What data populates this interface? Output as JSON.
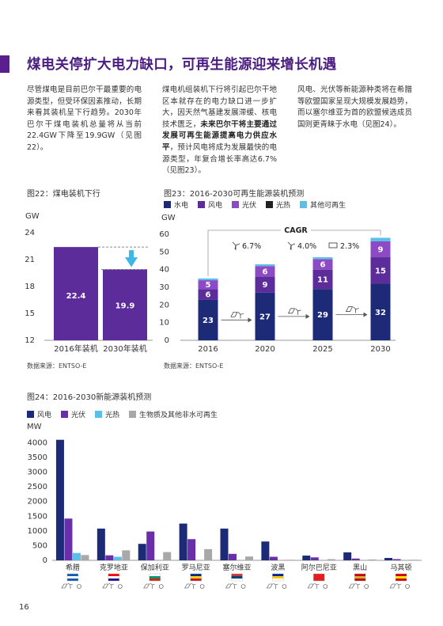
{
  "title": "煤电关停扩大电力缺口，可再生能源迎来增长机遇",
  "paragraphs": {
    "p1": "尽管煤电是目前巴尔干最重要的电源类型，但受环保因素推动，长期来看其装机呈下行趋势。2030年巴尔干煤电装机总量将从当前22.4GW下降至19.9GW（见图22）。",
    "p2_a": "煤电机组装机下行将引起巴尔干地区本就存在的电力缺口进一步扩大，因天然气基建发展滞缓、核电技术匮乏，",
    "p2_b": "未来巴尔干将主要通过发展可再生能源提高电力供应水平",
    "p2_c": "，预计风电将成为发展最快的电源类型，年复合增长率高达6.7%（见图23）。",
    "p3": "风电、光伏等新能源种类将在希腊等欧盟国家呈现大规模发展趋势，而以塞尔维亚为首的欧盟候选成员国则更青睐于水电（见图24）。"
  },
  "fig22": {
    "caption": "图22：煤电装机下行",
    "unit": "GW",
    "source": "数据来源：ENTSO-E",
    "chart_data": {
      "type": "bar",
      "categories": [
        "2016年装机",
        "2030年装机"
      ],
      "values": [
        22.4,
        19.9
      ],
      "value_labels": [
        "22.4",
        "19.9"
      ],
      "yticks": [
        "24",
        "21",
        "18",
        "15",
        "12"
      ],
      "ylim": [
        12,
        24
      ],
      "color": "#5b2c9a"
    }
  },
  "fig23": {
    "caption": "图23：2016-2030可再生能源装机预测",
    "unit": "GW",
    "source": "数据来源：ENTSO-E",
    "cagr_label": "CAGR",
    "cagr_values": [
      "6.7%",
      "4.0%",
      "2.3%"
    ],
    "legend": [
      "水电",
      "风电",
      "光伏",
      "光热",
      "其他可再生"
    ],
    "chart_data": {
      "type": "bar",
      "stacked": true,
      "categories": [
        "2016",
        "2020",
        "2025",
        "2030"
      ],
      "yticks": [
        "60",
        "50",
        "40",
        "30",
        "20",
        "10",
        "0"
      ],
      "ylim": [
        0,
        60
      ],
      "series": [
        {
          "name": "水电",
          "values": [
            23,
            27,
            29,
            32
          ],
          "labels": [
            "23",
            "27",
            "29",
            "32"
          ],
          "color": "#1c2a78"
        },
        {
          "name": "风电",
          "values": [
            6,
            9,
            11,
            15
          ],
          "labels": [
            "6",
            "9",
            "11",
            "15"
          ],
          "color": "#5b2c9a"
        },
        {
          "name": "光伏",
          "values": [
            5,
            6,
            6,
            9
          ],
          "labels": [
            "5",
            "6",
            "6",
            "9"
          ],
          "color": "#8c4bc4"
        },
        {
          "name": "光热",
          "values": [
            0,
            0,
            0,
            0
          ],
          "labels": [
            "",
            "",
            "",
            ""
          ],
          "color": "#222222"
        },
        {
          "name": "其他可再生",
          "values": [
            1,
            1,
            1,
            2
          ],
          "labels": [
            "",
            "",
            "",
            ""
          ],
          "color": "#5bc0e8"
        }
      ]
    }
  },
  "fig24": {
    "caption": "图24：2016-2030新能源装机预测",
    "unit": "MW",
    "legend": [
      "风电",
      "光伏",
      "光热",
      "生物质及其他非水可再生"
    ],
    "chart_data": {
      "type": "bar",
      "categories": [
        "希腊",
        "克罗地亚",
        "保加利亚",
        "罗马尼亚",
        "塞尔维亚",
        "波黑",
        "阿尔巴尼亚",
        "黑山",
        "马其顿"
      ],
      "yticks": [
        "4000",
        "3500",
        "3000",
        "2500",
        "2000",
        "1500",
        "1000",
        "500",
        "0"
      ],
      "ylim": [
        0,
        4200
      ],
      "series": [
        {
          "name": "风电",
          "values": [
            4100,
            1080,
            560,
            1250,
            1080,
            640,
            160,
            270,
            80
          ],
          "color": "#1c2a78"
        },
        {
          "name": "光伏",
          "values": [
            1420,
            170,
            980,
            720,
            220,
            120,
            100,
            60,
            40
          ],
          "color": "#6a2fa8"
        },
        {
          "name": "光热",
          "values": [
            250,
            120,
            0,
            0,
            0,
            0,
            0,
            0,
            0
          ],
          "color": "#5bc0e8"
        },
        {
          "name": "生物质及其他非水可再生",
          "values": [
            180,
            340,
            280,
            380,
            130,
            20,
            40,
            30,
            20
          ],
          "color": "#a8a8a8"
        }
      ]
    }
  },
  "page_number": "16"
}
